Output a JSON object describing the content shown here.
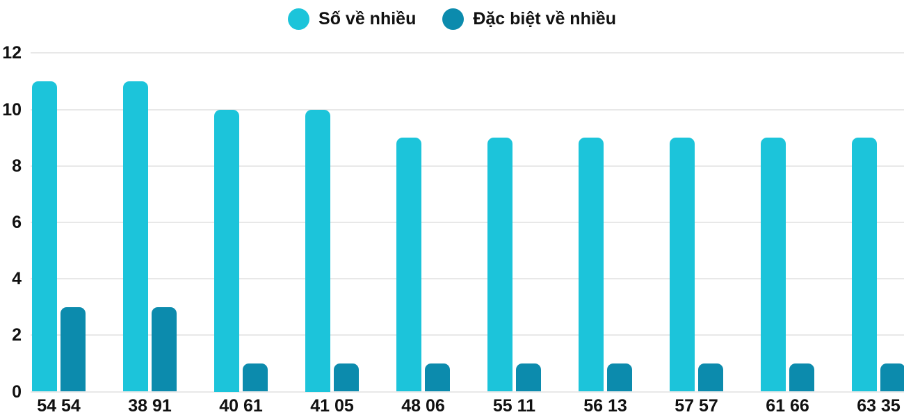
{
  "chart_data": {
    "type": "bar",
    "title": "",
    "xlabel": "",
    "ylabel": "",
    "categories": [
      "54 54",
      "38 91",
      "40 61",
      "41 05",
      "48 06",
      "55 11",
      "56 13",
      "57 57",
      "61 66",
      "63 35"
    ],
    "series": [
      {
        "name": "Số về nhiều",
        "color": "#1CC4DA",
        "values": [
          11,
          11,
          10,
          10,
          9,
          9,
          9,
          9,
          9,
          9
        ]
      },
      {
        "name": "Đặc biệt về nhiều",
        "color": "#0C8BAD",
        "values": [
          3,
          3,
          1,
          1,
          1,
          1,
          1,
          1,
          1,
          1
        ]
      }
    ],
    "ylim": [
      0,
      12
    ],
    "yticks": [
      0,
      2,
      4,
      6,
      8,
      10,
      12
    ],
    "grid": true,
    "legend_position": "top"
  },
  "colors": {
    "background": "#FFFFFF",
    "gridline": "#E8E8E8",
    "text": "#111111"
  }
}
